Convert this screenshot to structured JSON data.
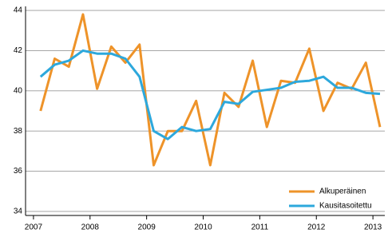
{
  "chart_data": {
    "type": "line",
    "x": [
      2007.125,
      2007.375,
      2007.625,
      2007.875,
      2008.125,
      2008.375,
      2008.625,
      2008.875,
      2009.125,
      2009.375,
      2009.625,
      2009.875,
      2010.125,
      2010.375,
      2010.625,
      2010.875,
      2011.125,
      2011.375,
      2011.625,
      2011.875,
      2012.125,
      2012.375,
      2012.625,
      2012.875,
      2013.125
    ],
    "series": [
      {
        "name": "Alkuperäinen",
        "color": "#ee9329",
        "values": [
          39.0,
          41.6,
          41.2,
          43.8,
          40.1,
          42.2,
          41.4,
          42.3,
          36.3,
          38.0,
          38.0,
          39.5,
          36.3,
          39.9,
          39.2,
          41.5,
          38.2,
          40.5,
          40.4,
          42.1,
          39.0,
          40.4,
          40.1,
          41.4,
          38.2
        ]
      },
      {
        "name": "Kausitasoitettu",
        "color": "#2da8dc",
        "values": [
          40.7,
          41.3,
          41.5,
          42.0,
          41.85,
          41.85,
          41.6,
          40.7,
          38.0,
          37.6,
          38.2,
          38.0,
          38.1,
          39.45,
          39.35,
          39.95,
          40.05,
          40.15,
          40.45,
          40.5,
          40.7,
          40.15,
          40.15,
          39.9,
          39.85
        ]
      }
    ],
    "xlim": [
      2006.86,
      2013.21
    ],
    "xticks": [
      2007,
      2008,
      2009,
      2010,
      2011,
      2012,
      2013
    ],
    "ylim": [
      33.8,
      44.2
    ],
    "yticks": [
      34,
      36,
      38,
      40,
      42,
      44
    ],
    "grid": true,
    "legend": "lower-right"
  }
}
